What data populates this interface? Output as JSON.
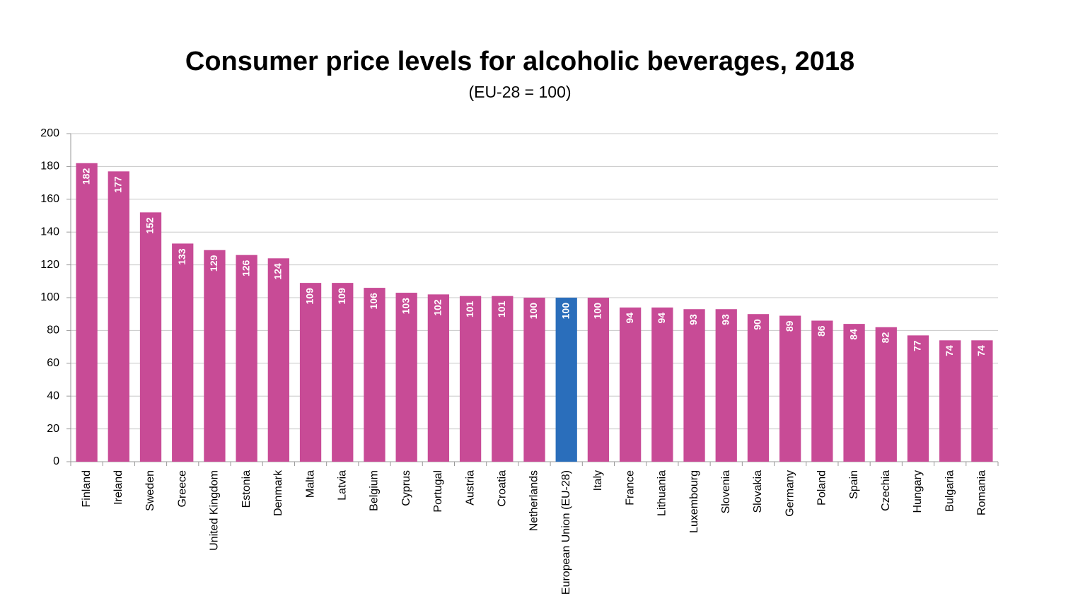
{
  "chart_data": {
    "type": "bar",
    "title": "Consumer price levels for alcoholic beverages, 2018",
    "subtitle": "(EU-28 = 100)",
    "categories": [
      "Finland",
      "Ireland",
      "Sweden",
      "Greece",
      "United Kingdom",
      "Estonia",
      "Denmark",
      "Malta",
      "Latvia",
      "Belgium",
      "Cyprus",
      "Portugal",
      "Austria",
      "Croatia",
      "Netherlands",
      "European Union (EU-28)",
      "Italy",
      "France",
      "Lithuania",
      "Luxembourg",
      "Slovenia",
      "Slovakia",
      "Germany",
      "Poland",
      "Spain",
      "Czechia",
      "Hungary",
      "Bulgaria",
      "Romania"
    ],
    "values": [
      182,
      177,
      152,
      133,
      129,
      126,
      124,
      109,
      109,
      106,
      103,
      102,
      101,
      101,
      100,
      100,
      100,
      94,
      94,
      93,
      93,
      90,
      89,
      86,
      84,
      82,
      77,
      74,
      74
    ],
    "colors": [
      "#c84b96",
      "#c84b96",
      "#c84b96",
      "#c84b96",
      "#c84b96",
      "#c84b96",
      "#c84b96",
      "#c84b96",
      "#c84b96",
      "#c84b96",
      "#c84b96",
      "#c84b96",
      "#c84b96",
      "#c84b96",
      "#c84b96",
      "#2a6ebb",
      "#c84b96",
      "#c84b96",
      "#c84b96",
      "#c84b96",
      "#c84b96",
      "#c84b96",
      "#c84b96",
      "#c84b96",
      "#c84b96",
      "#c84b96",
      "#c84b96",
      "#c84b96",
      "#c84b96"
    ],
    "ylim": [
      0,
      200
    ],
    "yticks": [
      0,
      20,
      40,
      60,
      80,
      100,
      120,
      140,
      160,
      180,
      200
    ],
    "grid": true
  }
}
